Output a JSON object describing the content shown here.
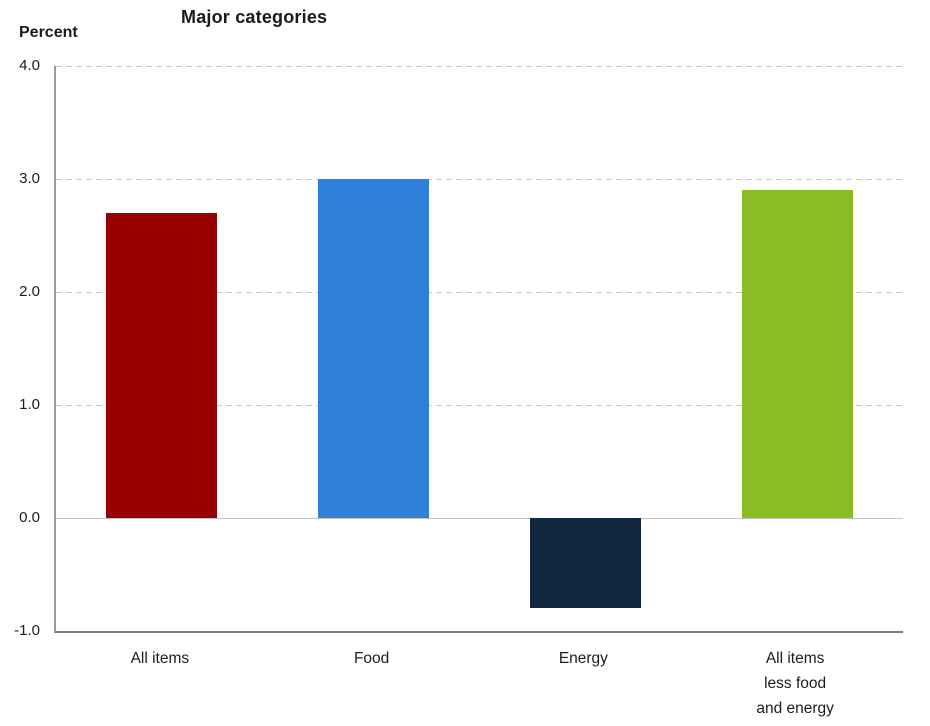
{
  "chart_data": {
    "type": "bar",
    "title": "Major categories",
    "ylabel": "Percent",
    "xlabel": "",
    "categories": [
      "All items",
      "Food",
      "Energy",
      "All items\nless food\nand energy"
    ],
    "values": [
      2.7,
      3.0,
      -0.8,
      2.9
    ],
    "bar_colors": [
      "#990000",
      "#2f80d8",
      "#12283e",
      "#8abd22"
    ],
    "ylim": [
      -1.0,
      4.0
    ],
    "yticks": [
      "4.0",
      "3.0",
      "2.0",
      "1.0",
      "0.0",
      "-1.0"
    ],
    "ytick_values": [
      4.0,
      3.0,
      2.0,
      1.0,
      0.0,
      -1.0
    ],
    "grid": "horizontal-dashed",
    "legend": "none",
    "text_color": "#1c1c1c",
    "gridline_color": "#c9c9c9"
  }
}
